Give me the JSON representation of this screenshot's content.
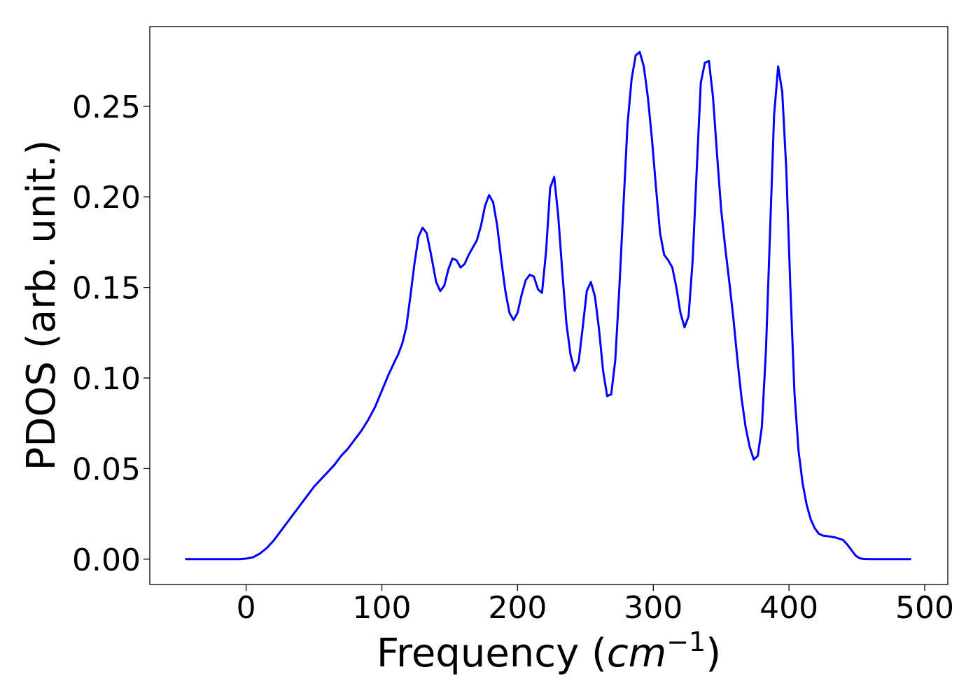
{
  "chart_data": {
    "type": "line",
    "title": "",
    "xlabel": "Frequency (",
    "xlabel_math": "cm",
    "xlabel_exp": "−1",
    "xlabel_close": ")",
    "ylabel": "PDOS (arb. unit.)",
    "xlim": [
      -71,
      517
    ],
    "ylim": [
      -0.014,
      0.294
    ],
    "xticks": [
      0,
      100,
      200,
      300,
      400,
      500
    ],
    "yticks": [
      0.0,
      0.05,
      0.1,
      0.15,
      0.2,
      0.25
    ],
    "xtick_labels": [
      "0",
      "100",
      "200",
      "300",
      "400",
      "500"
    ],
    "ytick_labels": [
      "0.00",
      "0.05",
      "0.10",
      "0.15",
      "0.20",
      "0.25"
    ],
    "grid": false,
    "legend": "none",
    "series": [
      {
        "color": "#0000ff",
        "x": [
          -45,
          -30,
          -15,
          -5,
          0,
          5,
          10,
          15,
          20,
          25,
          30,
          35,
          40,
          45,
          50,
          55,
          60,
          65,
          70,
          75,
          80,
          85,
          90,
          95,
          100,
          105,
          110,
          112,
          115,
          118,
          121,
          124,
          127,
          130,
          133,
          136,
          140,
          143,
          146,
          149,
          152,
          155,
          158,
          161,
          164,
          167,
          170,
          173,
          176,
          179,
          182,
          185,
          188,
          191,
          194,
          197,
          200,
          203,
          206,
          209,
          212,
          215,
          218,
          221,
          224,
          227,
          230,
          233,
          236,
          239,
          242,
          245,
          248,
          251,
          254,
          257,
          260,
          263,
          266,
          269,
          272,
          275,
          278,
          281,
          284,
          287,
          290,
          293,
          296,
          299,
          302,
          305,
          308,
          311,
          314,
          317,
          320,
          323,
          326,
          329,
          332,
          335,
          338,
          341,
          344,
          347,
          350,
          353,
          356,
          359,
          362,
          365,
          368,
          371,
          374,
          377,
          380,
          383,
          386,
          389,
          392,
          395,
          398,
          401,
          404,
          407,
          410,
          413,
          416,
          419,
          422,
          425,
          430,
          435,
          440,
          443,
          446,
          449,
          452,
          455,
          460,
          470,
          480,
          490
        ],
        "y": [
          0.0,
          0.0,
          0.0,
          0.0,
          0.0003,
          0.001,
          0.003,
          0.006,
          0.01,
          0.015,
          0.02,
          0.025,
          0.03,
          0.035,
          0.04,
          0.044,
          0.048,
          0.052,
          0.057,
          0.061,
          0.066,
          0.071,
          0.077,
          0.084,
          0.093,
          0.102,
          0.11,
          0.113,
          0.119,
          0.128,
          0.145,
          0.163,
          0.178,
          0.183,
          0.18,
          0.169,
          0.153,
          0.148,
          0.151,
          0.16,
          0.166,
          0.165,
          0.161,
          0.163,
          0.168,
          0.172,
          0.176,
          0.184,
          0.195,
          0.201,
          0.197,
          0.184,
          0.165,
          0.148,
          0.136,
          0.132,
          0.136,
          0.146,
          0.154,
          0.157,
          0.156,
          0.149,
          0.147,
          0.17,
          0.205,
          0.211,
          0.189,
          0.158,
          0.13,
          0.113,
          0.104,
          0.109,
          0.128,
          0.148,
          0.153,
          0.145,
          0.127,
          0.104,
          0.09,
          0.091,
          0.11,
          0.15,
          0.195,
          0.24,
          0.265,
          0.278,
          0.28,
          0.272,
          0.255,
          0.232,
          0.205,
          0.18,
          0.168,
          0.165,
          0.161,
          0.15,
          0.136,
          0.128,
          0.134,
          0.165,
          0.215,
          0.263,
          0.274,
          0.275,
          0.255,
          0.223,
          0.193,
          0.172,
          0.153,
          0.133,
          0.11,
          0.089,
          0.073,
          0.062,
          0.055,
          0.057,
          0.073,
          0.115,
          0.18,
          0.245,
          0.272,
          0.258,
          0.215,
          0.15,
          0.092,
          0.06,
          0.042,
          0.03,
          0.022,
          0.017,
          0.014,
          0.013,
          0.0125,
          0.0118,
          0.0105,
          0.008,
          0.005,
          0.002,
          0.0005,
          0.0001,
          0.0,
          0.0,
          0.0,
          0.0
        ]
      }
    ]
  }
}
